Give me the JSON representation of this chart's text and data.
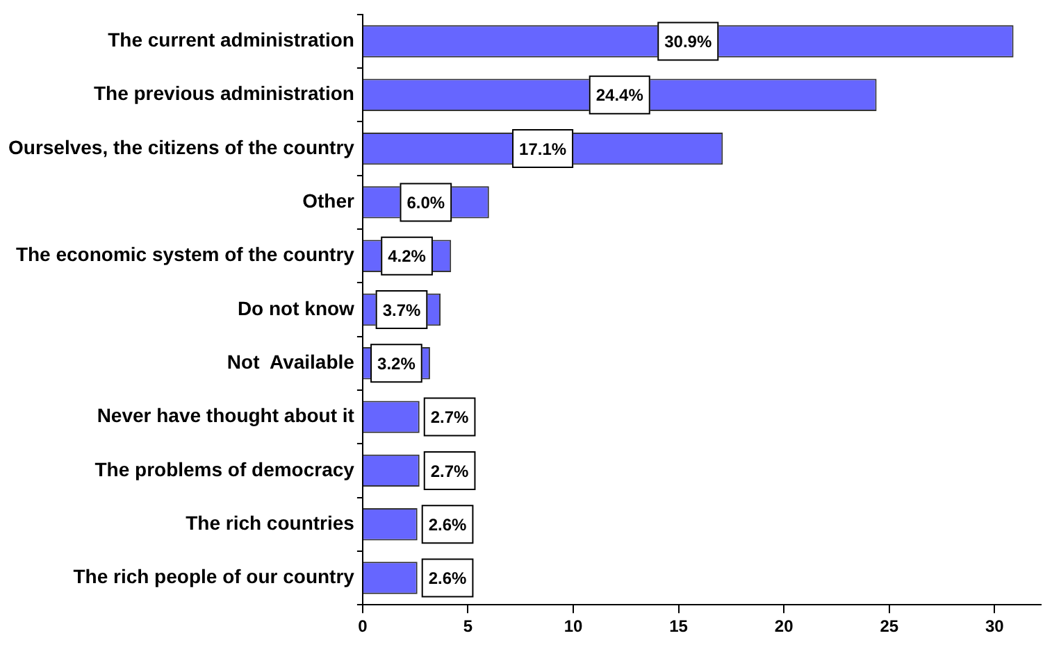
{
  "chart_data": {
    "type": "bar",
    "orientation": "horizontal",
    "categories": [
      "The current administration",
      "The previous administration",
      "Ourselves, the citizens of the country",
      "Other",
      "The economic system of the country",
      "Do not know",
      "Not  Available",
      "Never have thought about it",
      "The problems of democracy",
      "The rich countries",
      "The rich people of our country"
    ],
    "values": [
      30.9,
      24.4,
      17.1,
      6.0,
      4.2,
      3.7,
      3.2,
      2.7,
      2.7,
      2.6,
      2.6
    ],
    "value_labels": [
      "30.9%",
      "24.4%",
      "17.1%",
      "6.0%",
      "4.2%",
      "3.7%",
      "3.2%",
      "2.7%",
      "2.7%",
      "2.6%",
      "2.6%"
    ],
    "color": "#6666ff",
    "xlim": [
      0,
      32.2
    ],
    "xticks": [
      0,
      5,
      10,
      15,
      20,
      25,
      30
    ],
    "grid": false,
    "legend": false
  }
}
